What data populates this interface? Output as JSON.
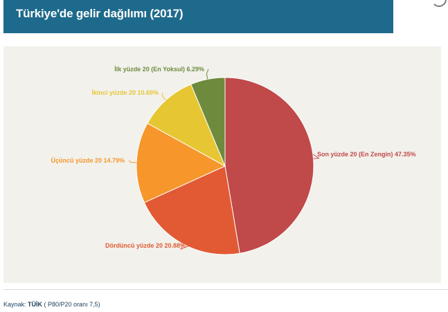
{
  "header": {
    "title": "Türkiye'de gelir dağılımı (2017)"
  },
  "source": {
    "prefix": "Kaynak: ",
    "org": "TÜİK",
    "note": " ( P80/P20 oranı 7,5)"
  },
  "chart_data": {
    "type": "pie",
    "title": "Türkiye'de gelir dağılımı (2017)",
    "slices": [
      {
        "name": "Son yüzde 20 (En Zengin)",
        "value": 47.35,
        "label": "Son yüzde 20 (En Zengin) 47.35%",
        "color": "#c0494a"
      },
      {
        "name": "Dördüncü yüzde 20",
        "value": 20.88,
        "label": "Dördüncü yüzde 20 20.88%",
        "color": "#e15a34"
      },
      {
        "name": "Üçüncü yüzde 20",
        "value": 14.79,
        "label": "Üçüncü yüzde 20 14.79%",
        "color": "#f6962b"
      },
      {
        "name": "İkinci yüzde 20",
        "value": 10.69,
        "label": "İkinci yüzde 20 10.69%",
        "color": "#e7c633"
      },
      {
        "name": "İlk yüzde 20 (En Yoksul)",
        "value": 6.29,
        "label": "İlk yüzde 20 (En Yoksul) 6.29%",
        "color": "#6e8b3d"
      }
    ],
    "legend": "none"
  }
}
